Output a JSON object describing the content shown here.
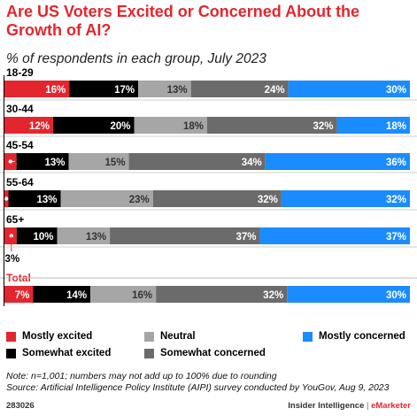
{
  "header": {
    "title": "Are US Voters Excited or Concerned About the Growth of AI?",
    "subtitle": "% of respondents in each group, July 2023"
  },
  "chart_data": {
    "type": "bar",
    "orientation": "horizontal",
    "stacked": true,
    "categories": [
      "18-29",
      "30-44",
      "45-54",
      "55-64",
      "65+",
      "Total"
    ],
    "series": [
      {
        "name": "Mostly excited",
        "color": "#e3262d",
        "values": [
          16,
          12,
          3,
          1,
          3,
          7
        ]
      },
      {
        "name": "Somewhat excited",
        "color": "#000000",
        "values": [
          17,
          20,
          13,
          13,
          10,
          14
        ]
      },
      {
        "name": "Neutral",
        "color": "#a6a6a6",
        "values": [
          13,
          18,
          15,
          23,
          13,
          16
        ]
      },
      {
        "name": "Somewhat concerned",
        "color": "#6b6b6b",
        "values": [
          24,
          32,
          34,
          32,
          37,
          32
        ]
      },
      {
        "name": "Mostly concerned",
        "color": "#1a8cff",
        "values": [
          30,
          18,
          36,
          32,
          37,
          30
        ]
      }
    ],
    "value_labels": [
      [
        "16%",
        "17%",
        "13%",
        "24%",
        "30%"
      ],
      [
        "12%",
        "20%",
        "18%",
        "32%",
        "18%"
      ],
      [
        "3%",
        "13%",
        "15%",
        "34%",
        "36%"
      ],
      [
        "1%",
        "13%",
        "23%",
        "32%",
        "32%"
      ],
      [
        "3%",
        "10%",
        "13%",
        "37%",
        "37%"
      ],
      [
        "7%",
        "14%",
        "16%",
        "32%",
        "30%"
      ]
    ],
    "legend_position": "bottom"
  },
  "legend": [
    {
      "label": "Mostly excited",
      "color": "#e3262d"
    },
    {
      "label": "Somewhat excited",
      "color": "#000000"
    },
    {
      "label": "Neutral",
      "color": "#a6a6a6"
    },
    {
      "label": "Somewhat concerned",
      "color": "#6b6b6b"
    },
    {
      "label": "Mostly concerned",
      "color": "#1a8cff"
    }
  ],
  "notes": {
    "note": "Note: n=1,001; numbers may not add up to 100% due to rounding",
    "source": "Source: Artificial Intelligence Policy Institute (AIPI) survey conducted by YouGov, Aug 9, 2023"
  },
  "footer": {
    "id": "283026",
    "brand_left": "Insider Intelligence",
    "separator": "|",
    "brand_right": "eMarketer"
  }
}
